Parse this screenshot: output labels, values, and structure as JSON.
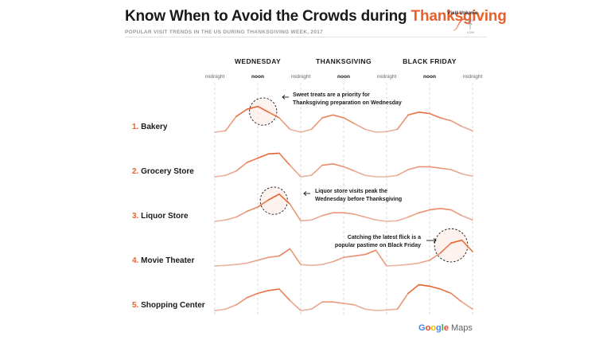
{
  "header": {
    "title_main": "Know When to Avoid the Crowds during ",
    "title_accent": "Thanksgiving",
    "subtitle": "POPULAR VISIT TRENDS IN THE US DURING THANKSGIVING WEEK, 2017"
  },
  "legend": {
    "title": "Visit Volume",
    "high": "HIGH",
    "low": "LOW"
  },
  "footer": {
    "google": "Google",
    "maps": "Maps"
  },
  "colors": {
    "accent": "#e8602c",
    "line_light": "#eab7a3",
    "line_dark": "#e8602c",
    "blue": "#4285f4",
    "red": "#ea4335",
    "yellow": "#fbbc05",
    "green": "#34a853"
  },
  "chart_data": {
    "type": "line",
    "days": [
      "WEDNESDAY",
      "THANKSGIVING",
      "BLACK FRIDAY"
    ],
    "time_ticks": [
      "midnight",
      "noon",
      "midnight",
      "noon",
      "midnight",
      "noon",
      "midnight"
    ],
    "x": [
      0,
      3,
      6,
      9,
      12,
      15,
      18,
      21,
      24,
      27,
      30,
      33,
      36,
      39,
      42,
      45,
      48,
      51,
      54,
      57,
      60,
      63,
      66,
      69,
      72
    ],
    "x_unit": "hours since Wednesday midnight",
    "y_unit": "relative visit volume (0 = low, 1 = high)",
    "highlight_windows": [
      {
        "series": "Bakery",
        "from": 9,
        "to": 18
      },
      {
        "series": "Liquor Store",
        "from": 12,
        "to": 21
      },
      {
        "series": "Movie Theater",
        "from": 60,
        "to": 72
      }
    ],
    "series": [
      {
        "num": "1.",
        "name": "Bakery",
        "values": [
          0,
          0.05,
          0.55,
          0.8,
          0.9,
          0.7,
          0.5,
          0.1,
          0,
          0.1,
          0.5,
          0.6,
          0.5,
          0.3,
          0.1,
          0,
          0.02,
          0.1,
          0.6,
          0.7,
          0.65,
          0.5,
          0.4,
          0.2,
          0.05
        ]
      },
      {
        "num": "2.",
        "name": "Grocery Store",
        "values": [
          0,
          0.05,
          0.2,
          0.5,
          0.65,
          0.8,
          0.82,
          0.4,
          0,
          0.05,
          0.4,
          0.45,
          0.35,
          0.2,
          0.05,
          0,
          0,
          0.05,
          0.25,
          0.35,
          0.35,
          0.3,
          0.25,
          0.1,
          0.02
        ]
      },
      {
        "num": "3.",
        "name": "Liquor Store",
        "values": [
          0,
          0.05,
          0.15,
          0.35,
          0.5,
          0.75,
          0.95,
          0.6,
          0.02,
          0.05,
          0.2,
          0.3,
          0.3,
          0.25,
          0.15,
          0.05,
          0,
          0.02,
          0.15,
          0.3,
          0.4,
          0.45,
          0.4,
          0.2,
          0.05
        ]
      },
      {
        "num": "4.",
        "name": "Movie Theater",
        "values": [
          0,
          0.02,
          0.05,
          0.1,
          0.2,
          0.3,
          0.35,
          0.6,
          0.05,
          0.02,
          0.05,
          0.15,
          0.3,
          0.35,
          0.4,
          0.55,
          0,
          0.02,
          0.05,
          0.1,
          0.2,
          0.45,
          0.8,
          0.9,
          0.5
        ]
      },
      {
        "num": "5.",
        "name": "Shopping Center",
        "values": [
          0,
          0.05,
          0.2,
          0.45,
          0.6,
          0.7,
          0.75,
          0.35,
          0,
          0.05,
          0.3,
          0.3,
          0.25,
          0.2,
          0.05,
          0,
          0.02,
          0.05,
          0.6,
          0.9,
          0.85,
          0.75,
          0.6,
          0.3,
          0.05
        ]
      }
    ]
  },
  "annotations": [
    {
      "lines": [
        "Sweet treats are a priority for",
        "Thanksgiving preparation on Wednesday"
      ]
    },
    {
      "lines": [
        "Liquor store visits peak the",
        "Wednesday before Thanksgiving"
      ]
    },
    {
      "lines": [
        "Catching the latest flick is a",
        "popular pastime on Black Friday"
      ]
    }
  ]
}
